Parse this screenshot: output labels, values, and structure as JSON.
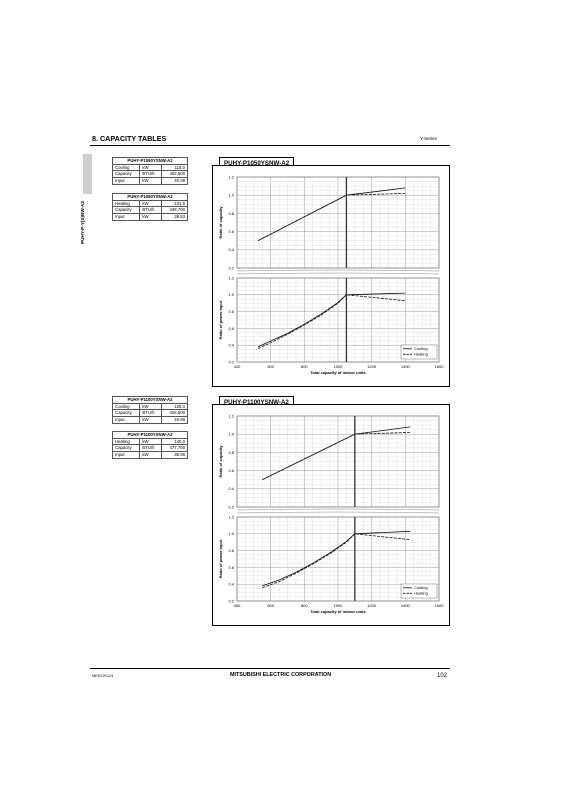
{
  "header": {
    "section_title": "8. CAPACITY TABLES",
    "series": "Y-Series",
    "side_label": "PUHY-P-Y(S)NW-A2"
  },
  "blocks": [
    {
      "cooling_table": {
        "title": "PUHY-P1050YSNW-A2",
        "rows": [
          {
            "label": "Cooling",
            "unit": "kW",
            "value": "118.0"
          },
          {
            "label": "Capacity",
            "unit": "BTU/h",
            "value": "402,600"
          },
          {
            "label": "Input",
            "unit": "kW",
            "value": "46.09"
          }
        ]
      },
      "heating_table": {
        "title": "PUHY-P1050YSNW-A2",
        "rows": [
          {
            "label": "Heating",
            "unit": "kW",
            "value": "131.5"
          },
          {
            "label": "Capacity",
            "unit": "BTU/h",
            "value": "448,700"
          },
          {
            "label": "Input",
            "unit": "kW",
            "value": "38.83"
          }
        ]
      },
      "chart_title": "PUHY-P1050YSNW-A2"
    },
    {
      "cooling_table": {
        "title": "PUHY-P1100YSNW-A2",
        "rows": [
          {
            "label": "Cooling",
            "unit": "kW",
            "value": "125.0"
          },
          {
            "label": "Capacity",
            "unit": "BTU/h",
            "value": "426,500"
          },
          {
            "label": "Input",
            "unit": "kW",
            "value": "46.99"
          }
        ]
      },
      "heating_table": {
        "title": "PUHY-P1100YSNW-A2",
        "rows": [
          {
            "label": "Heating",
            "unit": "kW",
            "value": "140.0"
          },
          {
            "label": "Capacity",
            "unit": "BTU/h",
            "value": "477,700"
          },
          {
            "label": "Input",
            "unit": "kW",
            "value": "38.88"
          }
        ]
      },
      "chart_title": "PUHY-P1100YSNW-A2"
    }
  ],
  "chart_data": [
    {
      "type": "line",
      "title": "PUHY-P1050YSNW-A2",
      "xlabel": "Total capacity of indoor units",
      "xlim": [
        400,
        1600
      ],
      "x_ticks": [
        "400",
        "600",
        "800",
        "1000",
        "1200",
        "1400",
        "1600"
      ],
      "rated_x": 1050,
      "grid": true,
      "legend_position": "bottom-right",
      "panels": [
        {
          "ylabel": "Ratio of capacity",
          "ylim": [
            0.2,
            1.2
          ],
          "y_ticks": [
            "0.2",
            "0.4",
            "0.6",
            "0.8",
            "1.0",
            "1.2"
          ],
          "series": [
            {
              "name": "Cooling",
              "style": "solid",
              "points": [
                [
                  525,
                  0.5
                ],
                [
                  1050,
                  1.0
                ],
                [
                  1400,
                  1.08
                ]
              ]
            },
            {
              "name": "Heating",
              "style": "dashed",
              "points": [
                [
                  525,
                  0.5
                ],
                [
                  1050,
                  1.0
                ],
                [
                  1400,
                  1.02
                ]
              ]
            }
          ]
        },
        {
          "ylabel": "Ratio of power input",
          "ylim": [
            0.2,
            1.2
          ],
          "y_ticks": [
            "0.2",
            "0.4",
            "0.6",
            "0.8",
            "1.0",
            "1.2"
          ],
          "series": [
            {
              "name": "Cooling",
              "style": "solid",
              "points": [
                [
                  525,
                  0.38
                ],
                [
                  600,
                  0.45
                ],
                [
                  700,
                  0.54
                ],
                [
                  800,
                  0.65
                ],
                [
                  900,
                  0.77
                ],
                [
                  1000,
                  0.91
                ],
                [
                  1050,
                  1.0
                ],
                [
                  1400,
                  1.02
                ]
              ]
            },
            {
              "name": "Heating",
              "style": "dashed",
              "points": [
                [
                  525,
                  0.36
                ],
                [
                  600,
                  0.43
                ],
                [
                  700,
                  0.53
                ],
                [
                  800,
                  0.64
                ],
                [
                  900,
                  0.76
                ],
                [
                  1000,
                  0.9
                ],
                [
                  1050,
                  1.0
                ],
                [
                  1400,
                  0.93
                ]
              ]
            }
          ]
        }
      ],
      "legend": [
        "Cooling",
        "Heating"
      ]
    },
    {
      "type": "line",
      "title": "PUHY-P1100YSNW-A2",
      "xlabel": "Total capacity of indoor units",
      "xlim": [
        400,
        1600
      ],
      "x_ticks": [
        "400",
        "600",
        "800",
        "1000",
        "1200",
        "1400",
        "1600"
      ],
      "rated_x": 1100,
      "grid": true,
      "legend_position": "bottom-right",
      "panels": [
        {
          "ylabel": "Ratio of capacity",
          "ylim": [
            0.2,
            1.2
          ],
          "y_ticks": [
            "0.2",
            "0.4",
            "0.6",
            "0.8",
            "1.0",
            "1.2"
          ],
          "series": [
            {
              "name": "Cooling",
              "style": "solid",
              "points": [
                [
                  550,
                  0.5
                ],
                [
                  1100,
                  1.0
                ],
                [
                  1430,
                  1.08
                ]
              ]
            },
            {
              "name": "Heating",
              "style": "dashed",
              "points": [
                [
                  550,
                  0.5
                ],
                [
                  1100,
                  1.0
                ],
                [
                  1430,
                  1.02
                ]
              ]
            }
          ]
        },
        {
          "ylabel": "Ratio of power input",
          "ylim": [
            0.2,
            1.2
          ],
          "y_ticks": [
            "0.2",
            "0.4",
            "0.6",
            "0.8",
            "1.0",
            "1.2"
          ],
          "series": [
            {
              "name": "Cooling",
              "style": "solid",
              "points": [
                [
                  550,
                  0.38
                ],
                [
                  650,
                  0.45
                ],
                [
                  750,
                  0.54
                ],
                [
                  850,
                  0.65
                ],
                [
                  950,
                  0.77
                ],
                [
                  1050,
                  0.91
                ],
                [
                  1100,
                  1.0
                ],
                [
                  1430,
                  1.03
                ]
              ]
            },
            {
              "name": "Heating",
              "style": "dashed",
              "points": [
                [
                  550,
                  0.36
                ],
                [
                  650,
                  0.43
                ],
                [
                  750,
                  0.53
                ],
                [
                  850,
                  0.64
                ],
                [
                  950,
                  0.76
                ],
                [
                  1050,
                  0.9
                ],
                [
                  1100,
                  1.0
                ],
                [
                  1430,
                  0.93
                ]
              ]
            }
          ]
        }
      ],
      "legend": [
        "Cooling",
        "Heating"
      ]
    }
  ],
  "footer": {
    "code": "MEE22K124",
    "corporation": "MITSUBISHI ELECTRIC CORPORATION",
    "page": "102"
  }
}
